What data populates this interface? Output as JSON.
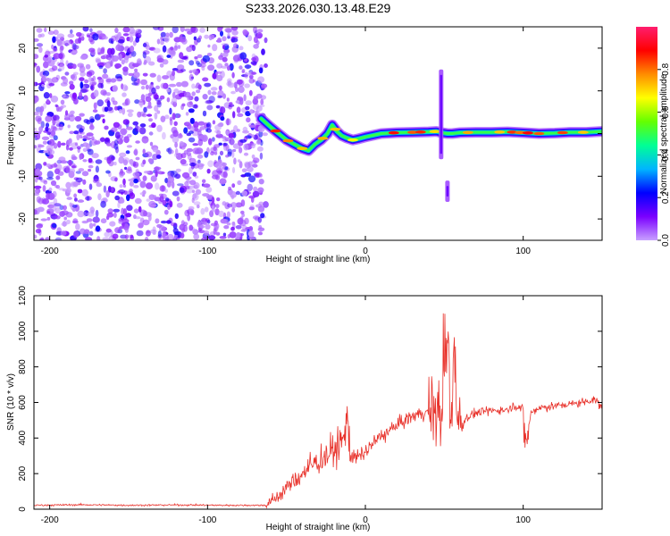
{
  "title": "S233.2026.030.13.48.E29",
  "chart_data": [
    {
      "type": "heatmap",
      "name": "spectrogram",
      "xlabel": "Height of straight line (km)",
      "ylabel": "Frequency (Hz)",
      "xlim": [
        -210,
        150
      ],
      "ylim": [
        -25,
        25
      ],
      "xticks": [
        "-200",
        "-100",
        "0",
        "100"
      ],
      "xtick_values": [
        -200,
        -100,
        0,
        100
      ],
      "yticks": [
        "20",
        "10",
        "0",
        "-10",
        "-20"
      ],
      "ytick_values": [
        20,
        10,
        0,
        -10,
        -20
      ],
      "noise_region_x": [
        -210,
        -63
      ],
      "ridge": {
        "x": [
          -66,
          -60,
          -55,
          -50,
          -45,
          -40,
          -36,
          -32,
          -28,
          -24,
          -21,
          -18,
          -15,
          -12,
          -8,
          -4,
          0,
          5,
          10,
          20,
          30,
          40,
          45,
          48,
          52,
          55,
          60,
          70,
          80,
          90,
          100,
          110,
          120,
          130,
          140,
          150
        ],
        "y": [
          3.5,
          1.5,
          0.0,
          -1.5,
          -2.5,
          -3.5,
          -4.0,
          -2.5,
          -1.5,
          0.0,
          2.0,
          0.5,
          -0.5,
          -1.0,
          -1.5,
          -1.2,
          -0.8,
          -0.4,
          0.0,
          0.2,
          0.3,
          0.4,
          0.5,
          0.2,
          0.0,
          0.0,
          0.2,
          0.3,
          0.3,
          0.4,
          0.2,
          0.0,
          0.1,
          0.3,
          0.3,
          0.5
        ]
      },
      "vertical_streaks": [
        {
          "x": 48,
          "ymin": -6,
          "ymax": 15
        },
        {
          "x": 52,
          "ymin": -16,
          "ymax": -11
        }
      ]
    },
    {
      "type": "colorbar",
      "label": "Normalized spectral amplitude",
      "range": [
        0.0,
        1.0
      ],
      "ticks": [
        "0.0",
        "0.2",
        "0.4",
        "0.6",
        "0.8"
      ],
      "tick_values": [
        0.0,
        0.2,
        0.4,
        0.6,
        0.8
      ],
      "colors": [
        "#c8a0ff",
        "#7a00ff",
        "#0000ff",
        "#00b4ff",
        "#00ff96",
        "#64ff00",
        "#ffff00",
        "#ff8c00",
        "#ff0000",
        "#ff1e6e"
      ]
    },
    {
      "type": "line",
      "name": "snr",
      "xlabel": "Height of straight line (km)",
      "ylabel": "SNR (10 * v/v)",
      "xlim": [
        -210,
        150
      ],
      "ylim": [
        0,
        1200
      ],
      "xticks": [
        "-200",
        "-100",
        "0",
        "100"
      ],
      "xtick_values": [
        -200,
        -100,
        0,
        100
      ],
      "yticks": [
        "0",
        "200",
        "400",
        "600",
        "800",
        "1000",
        "1200"
      ],
      "ytick_values": [
        0,
        200,
        400,
        600,
        800,
        1000,
        1200
      ],
      "series": [
        {
          "name": "SNR",
          "color": "#e8322b",
          "x": [
            -210,
            -180,
            -150,
            -120,
            -90,
            -70,
            -63,
            -60,
            -55,
            -50,
            -45,
            -40,
            -35,
            -30,
            -25,
            -20,
            -15,
            -12,
            -10,
            -5,
            0,
            5,
            10,
            15,
            20,
            25,
            30,
            35,
            40,
            45,
            48,
            50,
            52,
            54,
            56,
            58,
            60,
            65,
            70,
            80,
            90,
            95,
            100,
            102,
            105,
            110,
            120,
            130,
            140,
            145,
            150
          ],
          "y": [
            22,
            25,
            22,
            24,
            22,
            22,
            22,
            40,
            75,
            120,
            160,
            200,
            240,
            270,
            300,
            330,
            380,
            420,
            300,
            290,
            320,
            370,
            410,
            440,
            470,
            500,
            520,
            540,
            545,
            560,
            520,
            700,
            950,
            400,
            900,
            600,
            480,
            520,
            540,
            555,
            560,
            585,
            560,
            380,
            545,
            570,
            580,
            590,
            605,
            620,
            570
          ]
        }
      ]
    }
  ]
}
